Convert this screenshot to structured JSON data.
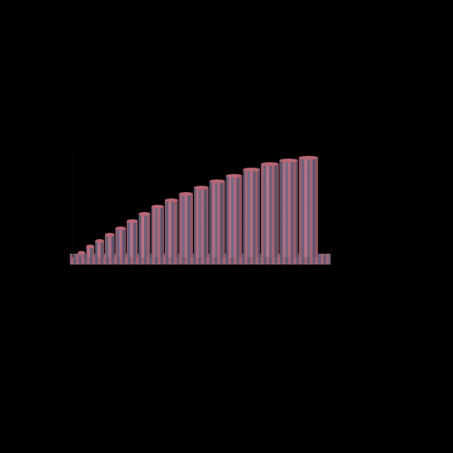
{
  "chart_data": {
    "type": "bar",
    "categories": [
      null,
      null,
      null,
      null,
      null,
      null,
      null,
      null,
      null,
      null,
      null,
      null,
      null,
      null,
      null,
      null,
      null
    ],
    "values": [
      5,
      12,
      18,
      25,
      32,
      40,
      48,
      56,
      63,
      70,
      77,
      84,
      90,
      97,
      103,
      107,
      110
    ],
    "color": "#cc6f7f",
    "ylim": [
      0,
      120
    ],
    "tick_labels": false,
    "grid": false
  }
}
